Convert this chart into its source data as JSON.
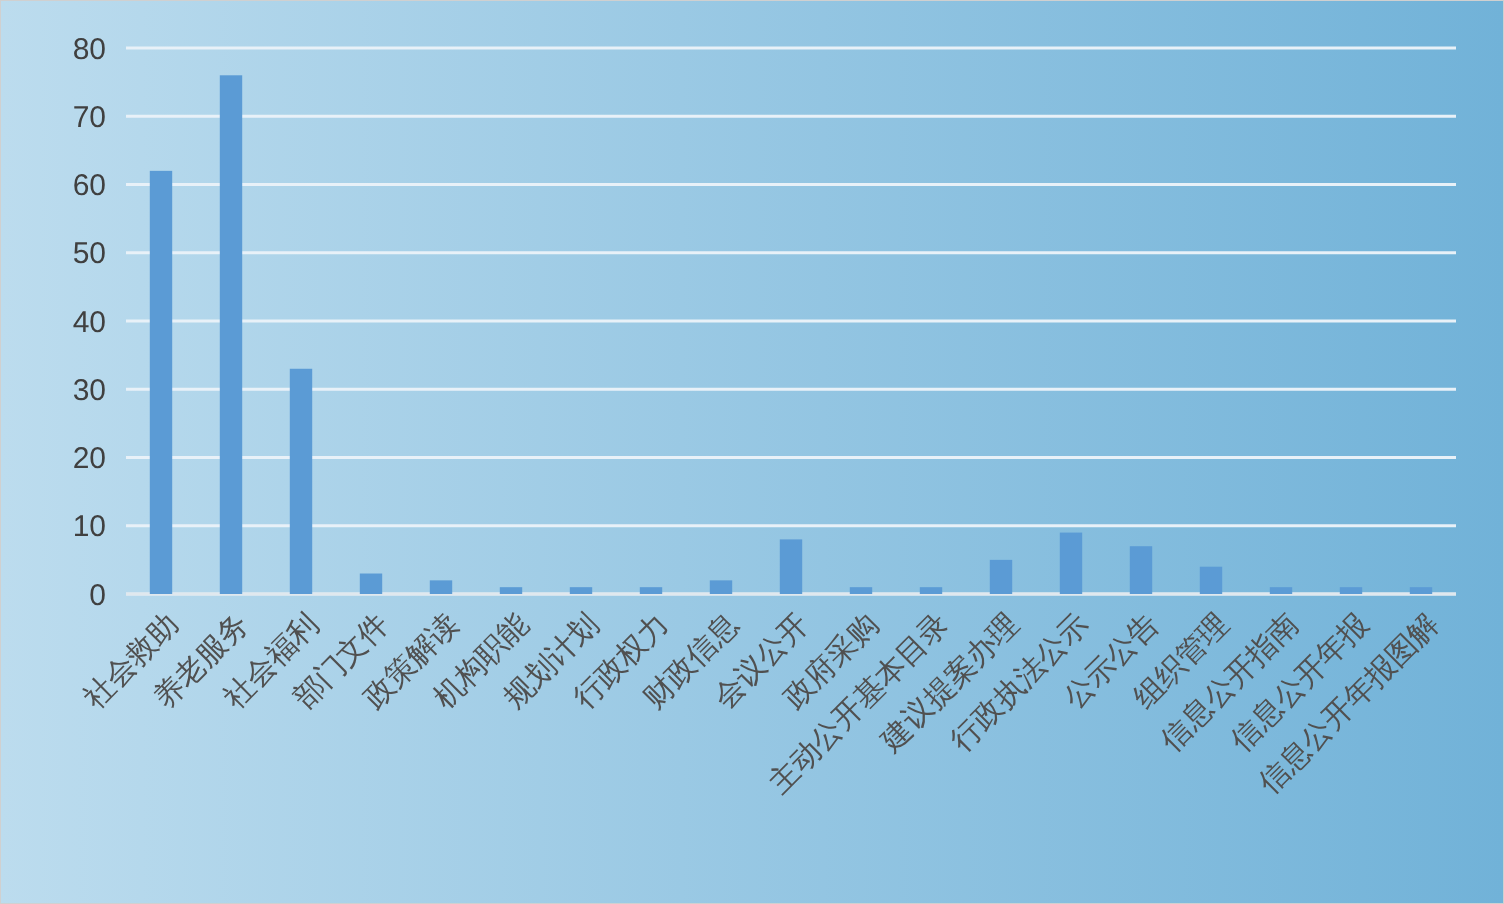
{
  "chart_data": {
    "type": "bar",
    "categories": [
      "社会救助",
      "养老服务",
      "社会福利",
      "部门文件",
      "政策解读",
      "机构职能",
      "规划计划",
      "行政权力",
      "财政信息",
      "会议公开",
      "政府采购",
      "主动公开基本目录",
      "建议提案办理",
      "行政执法公示",
      "公示公告",
      "组织管理",
      "信息公开指南",
      "信息公开年报",
      "信息公开年报图解"
    ],
    "values": [
      62,
      76,
      33,
      3,
      2,
      1,
      1,
      1,
      2,
      8,
      1,
      1,
      5,
      9,
      7,
      4,
      1,
      1,
      1
    ],
    "color": "#5b9bd5",
    "ylim": [
      0,
      80
    ],
    "yticks": [
      0,
      10,
      20,
      30,
      40,
      50,
      60,
      70,
      80
    ],
    "grid": "y"
  }
}
